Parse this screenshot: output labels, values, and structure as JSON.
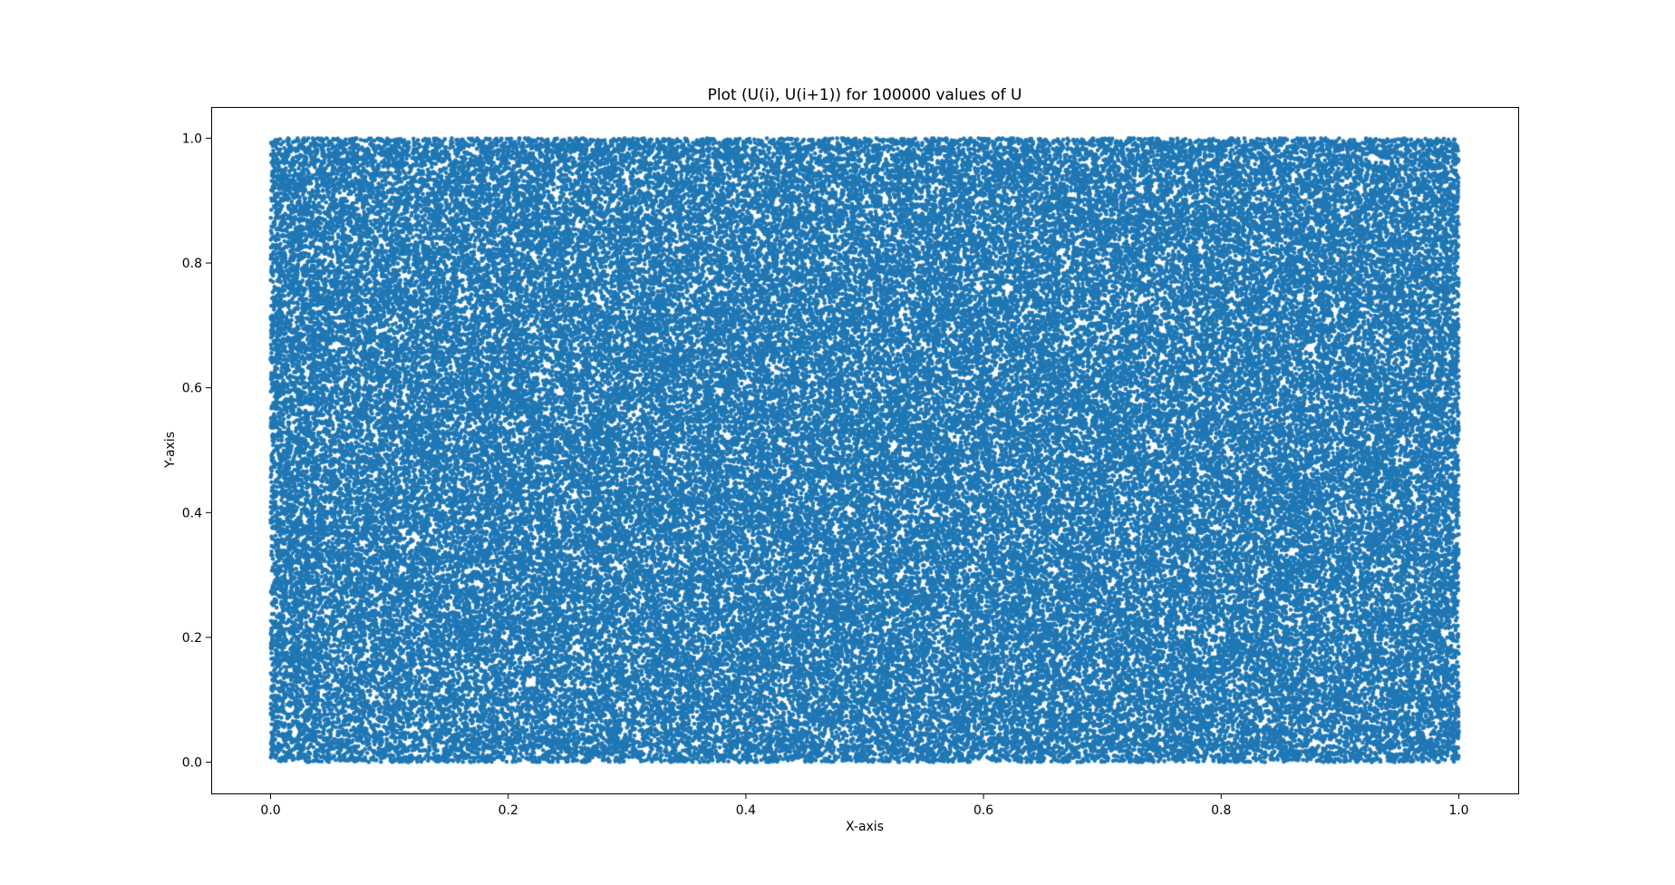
{
  "chart_data": {
    "type": "scatter",
    "title": "Plot (U(i), U(i+1)) for 100000 values of U",
    "xlabel": "X-axis",
    "ylabel": "Y-axis",
    "xlim": [
      -0.05,
      1.05
    ],
    "ylim": [
      -0.05,
      1.05
    ],
    "xticks": [
      0.0,
      0.2,
      0.4,
      0.6,
      0.8,
      1.0
    ],
    "yticks": [
      0.0,
      0.2,
      0.4,
      0.6,
      0.8,
      1.0
    ],
    "xtick_labels": [
      "0.0",
      "0.2",
      "0.4",
      "0.6",
      "0.8",
      "1.0"
    ],
    "ytick_labels": [
      "0.0",
      "0.2",
      "0.4",
      "0.6",
      "0.8",
      "1.0"
    ],
    "grid": false,
    "legend": "none",
    "series": [
      {
        "n_points": 100000,
        "x_range": [
          0.0,
          1.0
        ],
        "y_range": [
          0.0,
          1.0
        ],
        "distribution": "uniform",
        "color": "#1f77b4"
      }
    ]
  }
}
